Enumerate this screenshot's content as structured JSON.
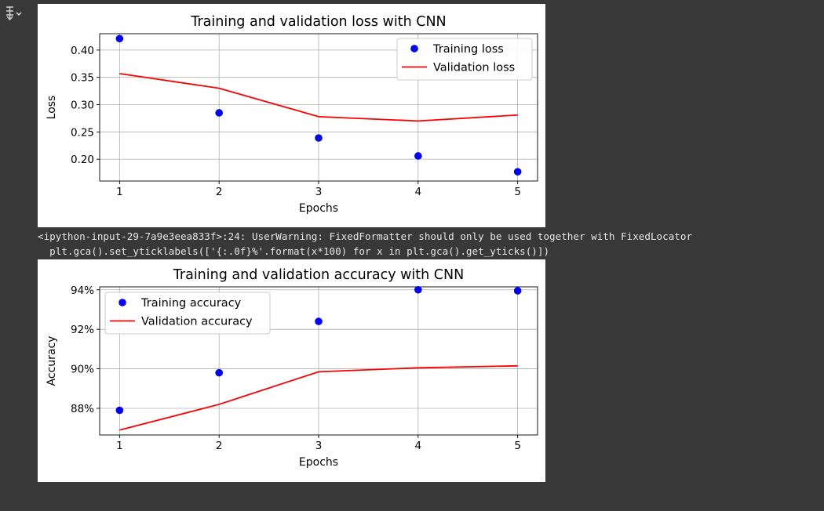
{
  "output_toggle": {
    "icon": "collapse-output-icon"
  },
  "warning": {
    "line1": "<ipython-input-29-7a9e3eea833f>:24: UserWarning: FixedFormatter should only be used together with FixedLocator",
    "line2": "  plt.gca().set_yticklabels(['{:.0f}%'.format(x*100) for x in plt.gca().get_yticks()])"
  },
  "chart_data": [
    {
      "type": "line",
      "title": "Training and validation loss with CNN",
      "xlabel": "Epochs",
      "ylabel": "Loss",
      "x": [
        1,
        2,
        3,
        4,
        5
      ],
      "xticks": [
        "1",
        "2",
        "3",
        "4",
        "5"
      ],
      "xlim": [
        0.8,
        5.2
      ],
      "ylim": [
        0.16,
        0.43
      ],
      "yticks": [
        0.2,
        0.25,
        0.3,
        0.35,
        0.4
      ],
      "ytick_labels": [
        "0.20",
        "0.25",
        "0.30",
        "0.35",
        "0.40"
      ],
      "grid": true,
      "legend_position": "top-right",
      "series": [
        {
          "name": "Training loss",
          "style": "points",
          "color": "#0000ff",
          "values": [
            0.421,
            0.285,
            0.239,
            0.206,
            0.177
          ]
        },
        {
          "name": "Validation loss",
          "style": "line",
          "color": "#ff0000",
          "values": [
            0.357,
            0.33,
            0.278,
            0.27,
            0.281
          ]
        }
      ]
    },
    {
      "type": "line",
      "title": "Training and validation accuracy with CNN",
      "xlabel": "Epochs",
      "ylabel": "Accuracy",
      "x": [
        1,
        2,
        3,
        4,
        5
      ],
      "xticks": [
        "1",
        "2",
        "3",
        "4",
        "5"
      ],
      "xlim": [
        0.8,
        5.2
      ],
      "ylim": [
        0.8665,
        0.9415
      ],
      "yticks": [
        0.88,
        0.9,
        0.92,
        0.94
      ],
      "ytick_labels": [
        "88%",
        "90%",
        "92%",
        "94%"
      ],
      "grid": true,
      "legend_position": "top-left",
      "series": [
        {
          "name": "Training accuracy",
          "style": "points",
          "color": "#0000ff",
          "values": [
            0.879,
            0.898,
            0.924,
            0.94,
            0.9395
          ]
        },
        {
          "name": "Validation accuracy",
          "style": "line",
          "color": "#ff0000",
          "values": [
            0.869,
            0.882,
            0.8985,
            0.9005,
            0.9015
          ]
        }
      ]
    }
  ]
}
